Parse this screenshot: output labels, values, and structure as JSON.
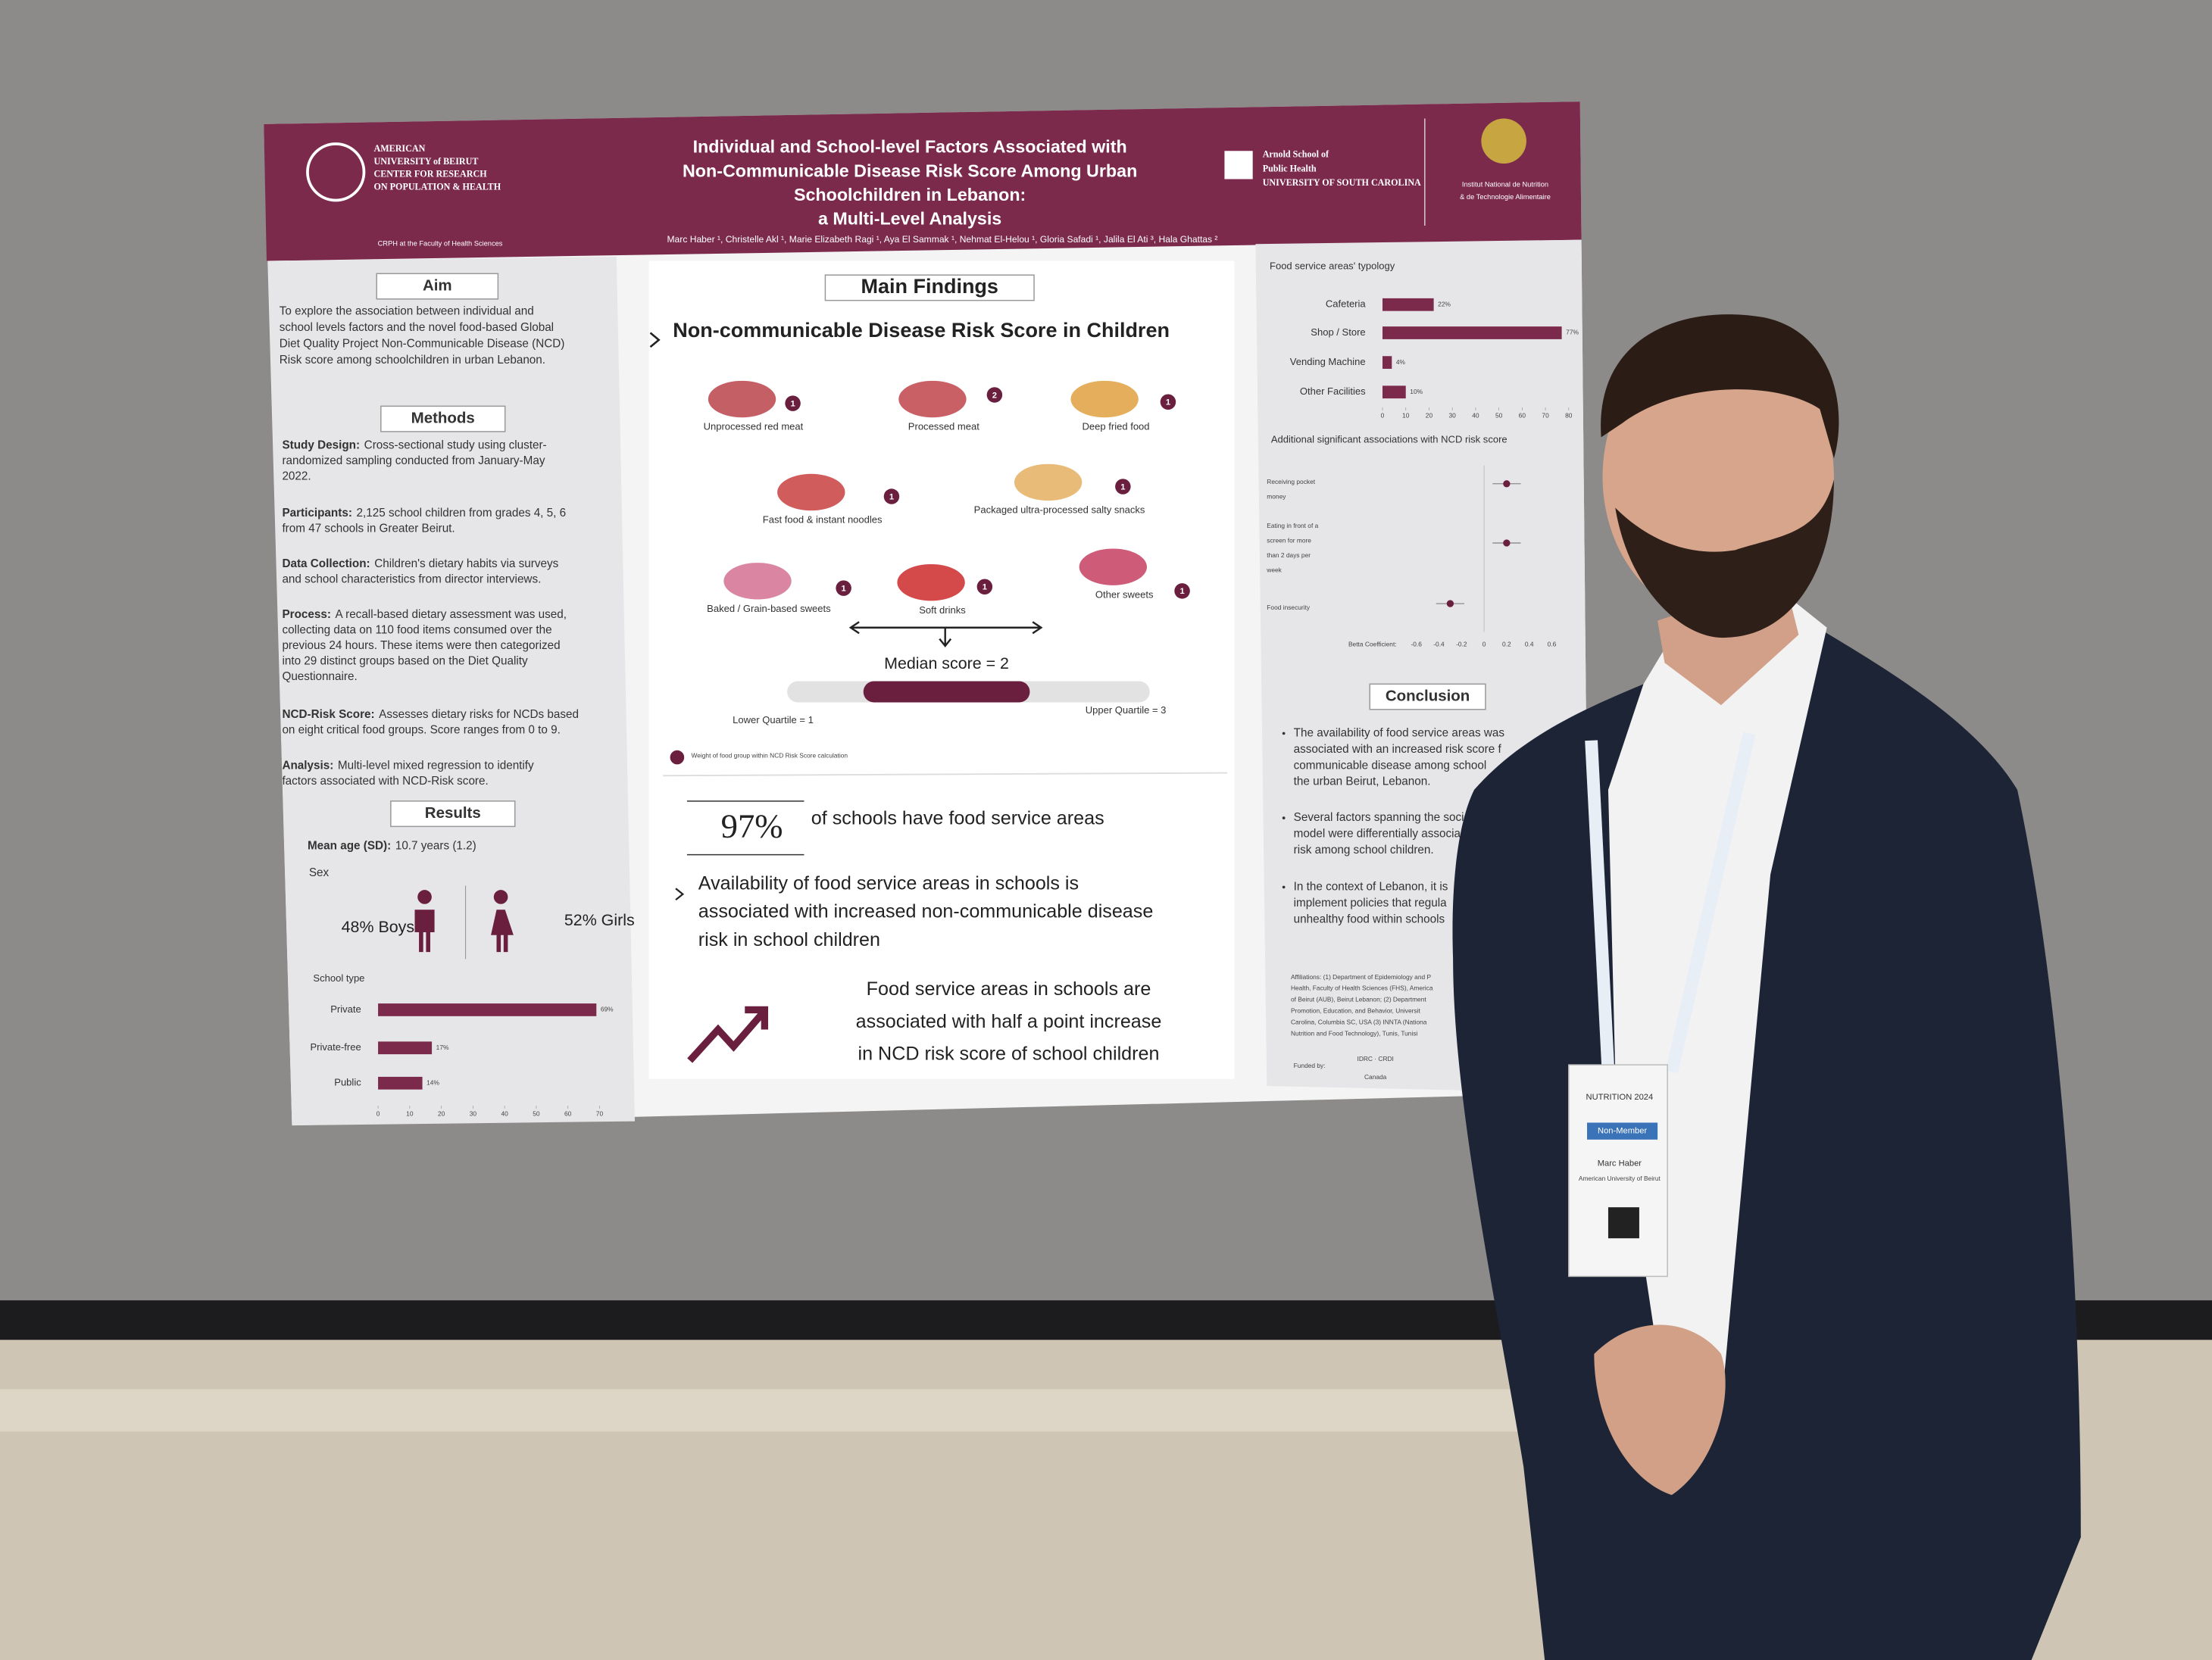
{
  "poster": {
    "header": {
      "org_left": [
        "AMERICAN",
        "UNIVERSITY of BEIRUT",
        "CENTER FOR RESEARCH",
        "ON POPULATION & HEALTH"
      ],
      "org_left_sub": "CRPH at the Faculty of Health Sciences",
      "title": [
        "Individual and School-level Factors Associated with",
        "Non-Communicable Disease Risk Score Among Urban",
        "Schoolchildren in Lebanon:",
        "a Multi-Level Analysis"
      ],
      "authors": "Marc Haber ¹, Christelle Akl ¹, Marie Elizabeth Ragi ¹, Aya El Sammak ¹, Nehmat El-Helou ¹, Gloria Safadi ¹, Jalila El Ati ³, Hala Ghattas ²",
      "org_right1": [
        "Arnold School of",
        "Public Health",
        "UNIVERSITY OF SOUTH CAROLINA"
      ],
      "org_right2": [
        "Institut National de Nutrition",
        "& de Technologie Alimentaire"
      ]
    },
    "aim": {
      "heading": "Aim",
      "text": [
        "To explore the association between individual and",
        "school levels factors and the novel food-based Global",
        "Diet Quality Project Non-Communicable Disease (NCD)",
        "Risk score among schoolchildren in urban Lebanon."
      ]
    },
    "methods": {
      "heading": "Methods",
      "items": [
        {
          "label": "Study Design:",
          "lines": [
            "Cross-sectional study using cluster-",
            "randomized sampling conducted  from January-May",
            "2022."
          ]
        },
        {
          "label": "Participants:",
          "lines": [
            "2,125 school children from grades 4, 5, 6",
            "from 47 schools in Greater Beirut."
          ]
        },
        {
          "label": "Data Collection:",
          "lines": [
            "Children's dietary habits via surveys",
            "and school characteristics from director interviews."
          ]
        },
        {
          "label": "Process:",
          "lines": [
            "A recall-based dietary assessment was used,",
            "collecting data on 110 food items consumed over the",
            "previous 24 hours. These items were then categorized",
            "into 29 distinct groups based on the Diet Quality",
            "Questionnaire."
          ]
        },
        {
          "label": "NCD-Risk Score:",
          "lines": [
            "Assesses dietary risks for NCDs based",
            "on eight critical food groups. Score ranges from 0 to 9."
          ]
        },
        {
          "label": "Analysis:",
          "lines": [
            "Multi-level mixed regression to identify",
            "factors associated with NCD-Risk score."
          ]
        }
      ]
    },
    "results": {
      "heading": "Results",
      "mean_age_label": "Mean age (SD):",
      "mean_age": "10.7 years (1.2)",
      "sex": "Sex",
      "boys": "48% Boys",
      "girls": "52% Girls",
      "school_type": {
        "title": "School type",
        "categories": [
          "Private",
          "Private-free",
          "Public"
        ],
        "values": [
          69,
          17,
          14
        ],
        "value_labels": [
          "69%",
          "17%",
          "14%"
        ],
        "xlim": [
          0,
          70
        ],
        "xticks": [
          0,
          10,
          20,
          30,
          40,
          50,
          60,
          70
        ],
        "color": "#7b2a4c"
      }
    },
    "findings": {
      "heading": "Main Findings",
      "subheading": "Non-communicable Disease Risk Score in Children",
      "foods": [
        {
          "label": "Unprocessed red meat",
          "weight": "1"
        },
        {
          "label": "Processed meat",
          "weight": "2"
        },
        {
          "label": "Deep fried food",
          "weight": "1"
        },
        {
          "label": "Fast food & instant noodles",
          "weight": "1"
        },
        {
          "label": "Packaged ultra-processed salty snacks",
          "weight": "1"
        },
        {
          "label": "Baked / Grain-based sweets",
          "weight": "1"
        },
        {
          "label": "Soft drinks",
          "weight": "1"
        },
        {
          "label": "Other sweets",
          "weight": "1"
        }
      ],
      "median": "Median score = 2",
      "lower": "Lower Quartile = 1",
      "upper": "Upper Quartile = 3",
      "legend": "Weight of food group within NCD Risk Score calculation",
      "pct": "97%",
      "pct_text": "of schools have food service areas",
      "bullet": [
        "Availability of food service areas in schools is",
        "associated with increased non-communicable disease",
        "risk in school children"
      ],
      "key": [
        "Food service areas in schools are",
        "associated with half a point increase",
        "in NCD risk score of school children"
      ]
    },
    "typology": {
      "title": "Food service areas' typology",
      "categories": [
        "Cafeteria",
        "Shop / Store",
        "Vending Machine",
        "Other Facilities"
      ],
      "values": [
        22,
        77,
        4,
        10
      ],
      "value_labels": [
        "22%",
        "77%",
        "4%",
        "10%"
      ],
      "xlim": [
        0,
        80
      ],
      "xticks": [
        0,
        10,
        20,
        30,
        40,
        50,
        60,
        70,
        80
      ],
      "color": "#7b2a4c"
    },
    "associations": {
      "title": "Additional significant associations with NCD risk score",
      "categories": [
        [
          "Receiving pocket",
          "money"
        ],
        [
          "Eating in front of a",
          "screen for more",
          "than 2 days per",
          "week"
        ],
        [
          "Food insecurity"
        ]
      ],
      "values": [
        0.2,
        0.2,
        -0.3
      ],
      "xlim": [
        -0.6,
        0.6
      ],
      "xticks": [
        -0.6,
        -0.4,
        -0.2,
        0,
        0.2,
        0.4,
        0.6
      ],
      "xlabel": "Betta Coefficient:"
    },
    "conclusion": {
      "heading": "Conclusion",
      "items": [
        [
          "The availability of food service areas was",
          "associated with an increased risk score f",
          "communicable disease among school",
          "the urban Beirut, Lebanon."
        ],
        [
          "Several factors spanning the socio",
          "model were differentially associa",
          "risk among school children."
        ],
        [
          "In the context of Lebanon, it is",
          "implement policies that regula",
          "unhealthy food within schools"
        ]
      ]
    },
    "affiliations": [
      "Affiliations: (1) Department of Epidemiology and P",
      "Health, Faculty of Health Sciences (FHS), America",
      "of Beirut (AUB), Beirut Lebanon; (2) Department",
      "Promotion, Education, and Behavior, Universit",
      "Carolina, Columbia SC, USA (3) INNTA (Nationa",
      "Nutrition and Food Technology), Tunis, Tunisi"
    ],
    "funded": "Funded by:",
    "funder": "IDRC · CRDI",
    "funder_country": "Canada"
  },
  "badge": {
    "event": "NUTRITION 2024",
    "type": "Non-Member",
    "name": "Marc Haber",
    "org": "American University of Beirut"
  }
}
